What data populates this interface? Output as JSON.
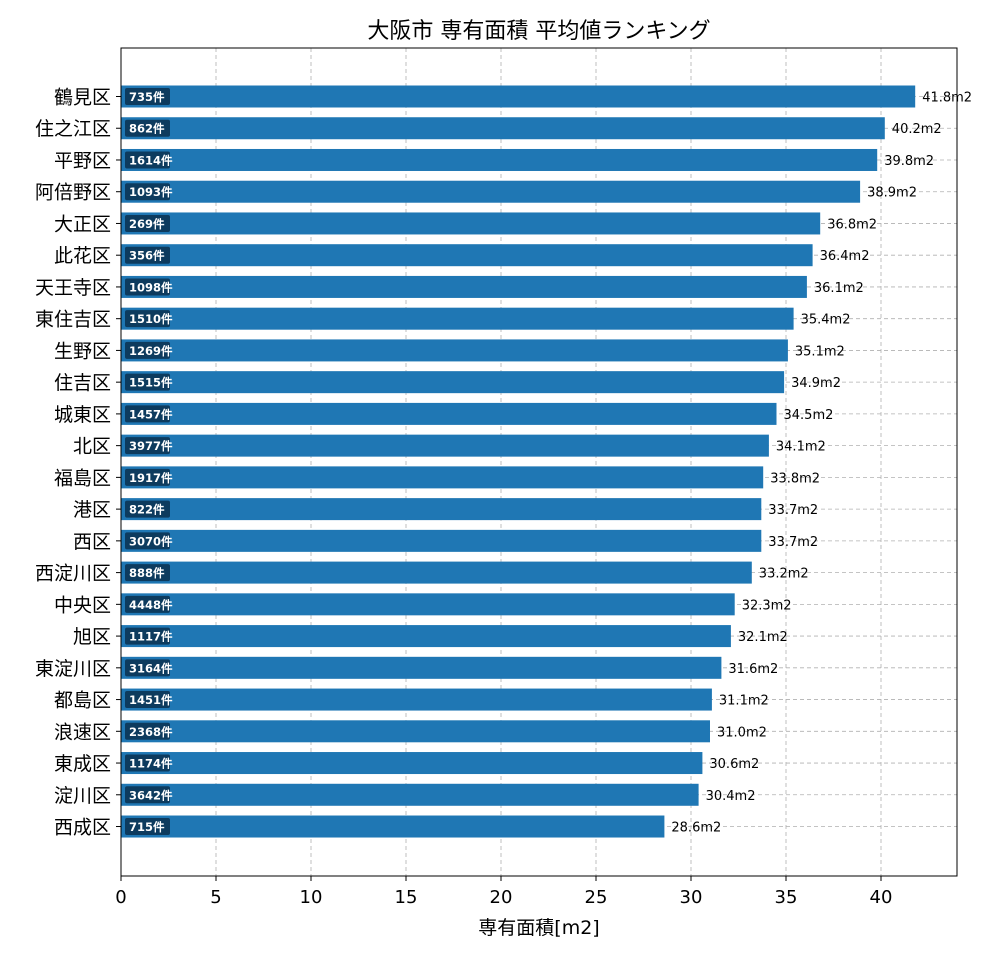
{
  "chart_data": {
    "type": "bar",
    "orientation": "horizontal",
    "title": "大阪市 専有面積 平均値ランキング",
    "xlabel": "専有面積[m2]",
    "ylabel": "",
    "xlim": [
      0,
      44
    ],
    "xticks": [
      "0",
      "5",
      "10",
      "15",
      "20",
      "25",
      "30",
      "35",
      "40"
    ],
    "grid": true,
    "bar_color": "#1f77b4",
    "count_badge_color": "#0d3b5e",
    "value_suffix": "m2",
    "count_suffix": "件",
    "categories": [
      "鶴見区",
      "住之江区",
      "平野区",
      "阿倍野区",
      "大正区",
      "此花区",
      "天王寺区",
      "東住吉区",
      "生野区",
      "住吉区",
      "城東区",
      "北区",
      "福島区",
      "港区",
      "西区",
      "西淀川区",
      "中央区",
      "旭区",
      "東淀川区",
      "都島区",
      "浪速区",
      "東成区",
      "淀川区",
      "西成区"
    ],
    "values": [
      41.8,
      40.2,
      39.8,
      38.9,
      36.8,
      36.4,
      36.1,
      35.4,
      35.1,
      34.9,
      34.5,
      34.1,
      33.8,
      33.7,
      33.7,
      33.2,
      32.3,
      32.1,
      31.6,
      31.1,
      31.0,
      30.6,
      30.4,
      28.6
    ],
    "value_labels": [
      "41.8m2",
      "40.2m2",
      "39.8m2",
      "38.9m2",
      "36.8m2",
      "36.4m2",
      "36.1m2",
      "35.4m2",
      "35.1m2",
      "34.9m2",
      "34.5m2",
      "34.1m2",
      "33.8m2",
      "33.7m2",
      "33.7m2",
      "33.2m2",
      "32.3m2",
      "32.1m2",
      "31.6m2",
      "31.1m2",
      "31.0m2",
      "30.6m2",
      "30.4m2",
      "28.6m2"
    ],
    "counts": [
      "735件",
      "862件",
      "1614件",
      "1093件",
      "269件",
      "356件",
      "1098件",
      "1510件",
      "1269件",
      "1515件",
      "1457件",
      "3977件",
      "1917件",
      "822件",
      "3070件",
      "888件",
      "4448件",
      "1117件",
      "3164件",
      "1451件",
      "2368件",
      "1174件",
      "3642件",
      "715件"
    ]
  }
}
